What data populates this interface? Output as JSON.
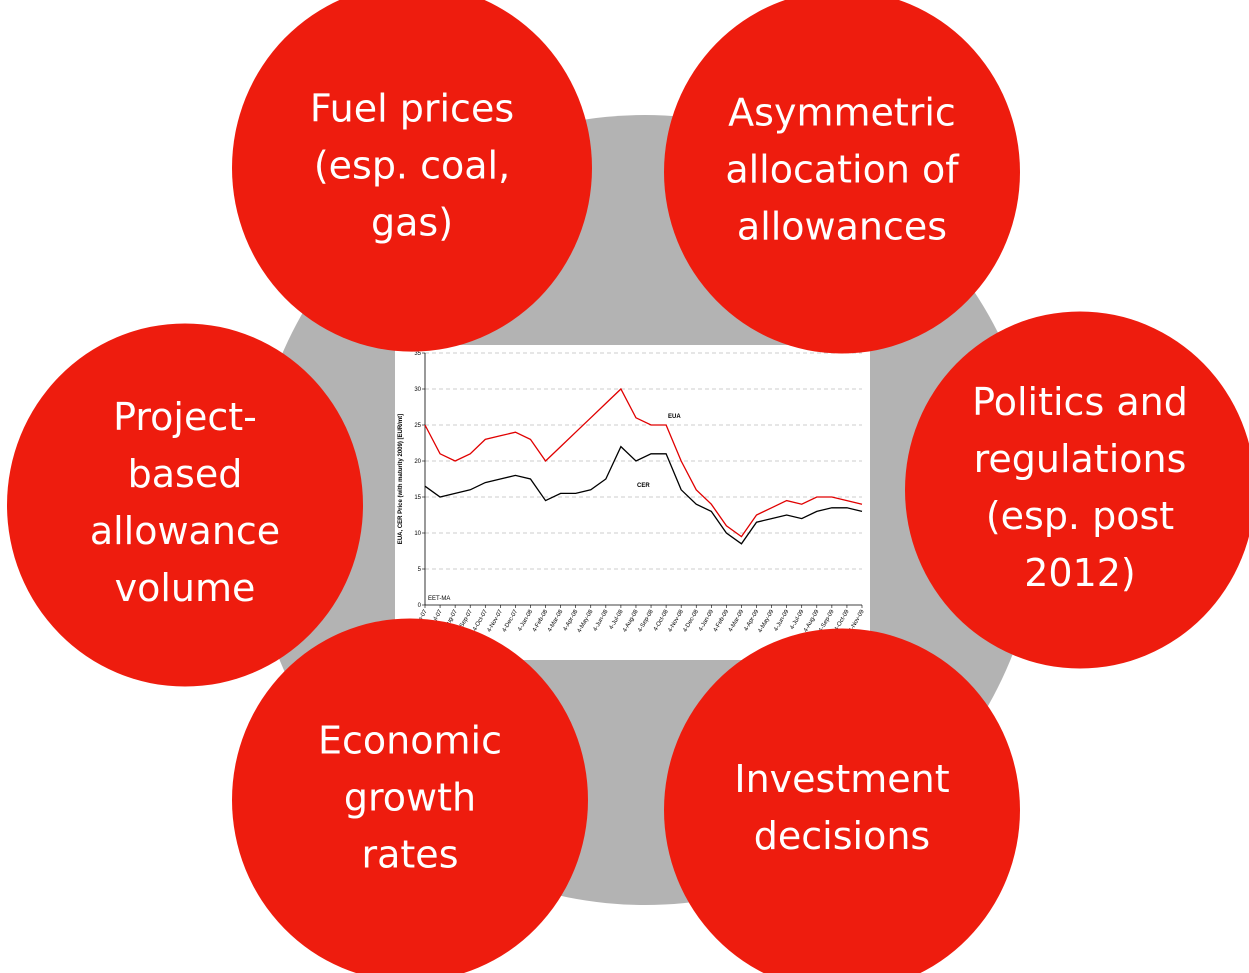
{
  "nodes": [
    {
      "lines": [
        "Fuel prices",
        "(esp. coal,",
        "gas)"
      ]
    },
    {
      "lines": [
        "Asymmetric",
        "allocation of",
        "allowances"
      ]
    },
    {
      "lines": [
        "Politics and",
        "regulations",
        "(esp. post",
        "2012)"
      ]
    },
    {
      "lines": [
        "Investment",
        "decisions"
      ]
    },
    {
      "lines": [
        "Economic",
        "growth",
        "rates"
      ]
    },
    {
      "lines": [
        "Project-",
        "based",
        "allowance",
        "volume"
      ]
    }
  ],
  "chart_data": {
    "type": "line",
    "ylabel": "EUA, CER Price (with maturity 2009) [EUR/mt]",
    "annotations": [
      "EUA",
      "CER",
      "EET-MA"
    ],
    "categories": [
      "4-Jun-07",
      "4-Jul-07",
      "4-Aug-07",
      "4-Sep-07",
      "4-Oct-07",
      "4-Nov-07",
      "4-Dec-07",
      "4-Jan-08",
      "4-Feb-08",
      "4-Mar-08",
      "4-Apr-08",
      "4-May-08",
      "4-Jun-08",
      "4-Jul-08",
      "4-Aug-08",
      "4-Sep-08",
      "4-Oct-08",
      "4-Nov-08",
      "4-Dec-08",
      "4-Jan-09",
      "4-Feb-09",
      "4-Mar-09",
      "4-Apr-09",
      "4-May-09",
      "4-Jun-09",
      "4-Jul-09",
      "4-Aug-09",
      "4-Sep-09",
      "4-Oct-09",
      "4-Nov-09"
    ],
    "series": [
      {
        "name": "EUA",
        "color": "#e00000",
        "values": [
          25,
          21,
          20,
          21,
          23,
          23.5,
          24,
          23,
          20,
          22,
          24,
          26,
          28,
          30,
          26,
          25,
          25,
          20,
          16,
          14,
          11,
          9.5,
          12.5,
          13.5,
          14.5,
          14,
          15,
          15,
          14.5,
          14
        ]
      },
      {
        "name": "CER",
        "color": "#000000",
        "values": [
          16.5,
          15,
          15.5,
          16,
          17,
          17.5,
          18,
          17.5,
          14.5,
          15.5,
          15.5,
          16,
          17.5,
          22,
          20,
          21,
          21,
          16,
          14,
          13,
          10,
          8.5,
          11.5,
          12,
          12.5,
          12,
          13,
          13.5,
          13.5,
          13
        ]
      }
    ],
    "ylim": [
      0,
      35
    ],
    "yticks": [
      0,
      5,
      10,
      15,
      20,
      25,
      30,
      35
    ],
    "grid": true
  }
}
